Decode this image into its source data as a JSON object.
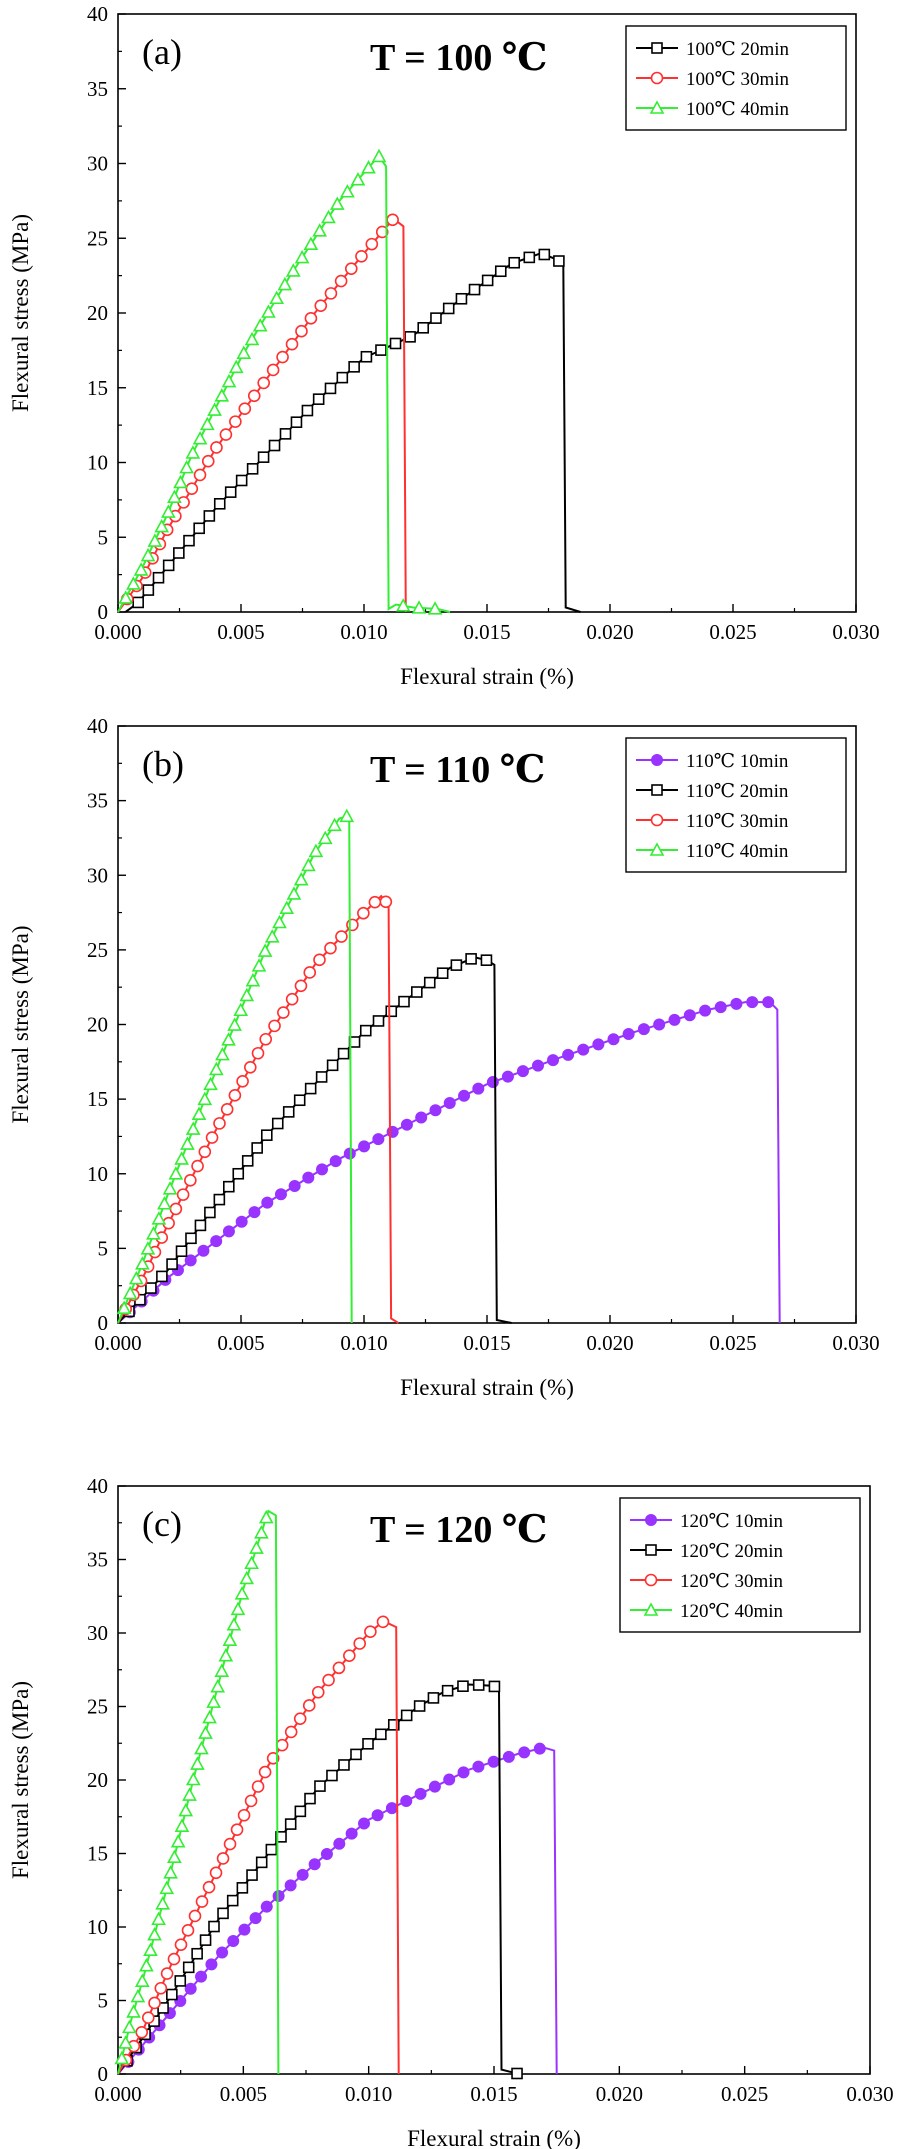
{
  "chart_data": [
    {
      "type": "line",
      "panel_label": "(a)",
      "title": "T = 100 ℃",
      "xlabel": "Flexural strain (%)",
      "ylabel": "Flexural stress (MPa)",
      "xlim": [
        0,
        0.03
      ],
      "ylim": [
        0,
        40
      ],
      "x_ticks": [
        "0.000",
        "0.005",
        "0.010",
        "0.015",
        "0.020",
        "0.025",
        "0.030"
      ],
      "y_ticks": [
        "0",
        "5",
        "10",
        "15",
        "20",
        "25",
        "30",
        "35",
        "40"
      ],
      "legend_position": "top-right",
      "series": [
        {
          "name": "100℃ 20min",
          "color": "#000000",
          "marker": "square",
          "points": [
            [
              0.0003,
              0
            ],
            [
              0.0008,
              0.6
            ],
            [
              0.002,
              3
            ],
            [
              0.004,
              7
            ],
            [
              0.006,
              10.5
            ],
            [
              0.008,
              14
            ],
            [
              0.01,
              17
            ],
            [
              0.012,
              18.5
            ],
            [
              0.014,
              21
            ],
            [
              0.016,
              23.3
            ],
            [
              0.0172,
              24
            ],
            [
              0.0178,
              23.6
            ],
            [
              0.0181,
              23.3
            ],
            [
              0.0182,
              0.3
            ],
            [
              0.0188,
              0
            ]
          ]
        },
        {
          "name": "100℃ 30min",
          "color": "#ff3030",
          "marker": "circle",
          "points": [
            [
              0,
              0
            ],
            [
              0.001,
              2.3
            ],
            [
              0.002,
              5.5
            ],
            [
              0.004,
              11
            ],
            [
              0.006,
              15.5
            ],
            [
              0.008,
              20
            ],
            [
              0.01,
              24
            ],
            [
              0.0112,
              26.3
            ],
            [
              0.0116,
              25.8
            ],
            [
              0.0117,
              0
            ]
          ]
        },
        {
          "name": "100℃ 40min",
          "color": "#33ee33",
          "marker": "triangle",
          "points": [
            [
              0,
              0
            ],
            [
              0.001,
              3
            ],
            [
              0.002,
              6.5
            ],
            [
              0.003,
              10.5
            ],
            [
              0.005,
              17
            ],
            [
              0.007,
              22.5
            ],
            [
              0.009,
              27.5
            ],
            [
              0.0106,
              30.5
            ],
            [
              0.0109,
              29.8
            ],
            [
              0.011,
              0.2
            ],
            [
              0.0113,
              0.5
            ],
            [
              0.012,
              0.3
            ],
            [
              0.013,
              0.2
            ],
            [
              0.0135,
              0
            ]
          ]
        }
      ]
    },
    {
      "type": "line",
      "panel_label": "(b)",
      "title": "T = 110 ℃",
      "xlabel": "Flexural strain (%)",
      "ylabel": "Flexural stress (MPa)",
      "xlim": [
        0,
        0.03
      ],
      "ylim": [
        0,
        40
      ],
      "x_ticks": [
        "0.000",
        "0.005",
        "0.010",
        "0.015",
        "0.020",
        "0.025",
        "0.030"
      ],
      "y_ticks": [
        "0",
        "5",
        "10",
        "15",
        "20",
        "25",
        "30",
        "35",
        "40"
      ],
      "legend_position": "top-right",
      "series": [
        {
          "name": "110℃ 10min",
          "color": "#9933ff",
          "marker": "filled-circle",
          "points": [
            [
              0,
              0
            ],
            [
              0.002,
              3
            ],
            [
              0.004,
              5.5
            ],
            [
              0.006,
              8
            ],
            [
              0.009,
              11
            ],
            [
              0.012,
              13.5
            ],
            [
              0.015,
              16
            ],
            [
              0.018,
              17.8
            ],
            [
              0.021,
              19.5
            ],
            [
              0.024,
              21
            ],
            [
              0.0255,
              21.5
            ],
            [
              0.0265,
              21.5
            ],
            [
              0.0268,
              21
            ],
            [
              0.0269,
              0
            ]
          ]
        },
        {
          "name": "110℃ 20min",
          "color": "#000000",
          "marker": "square",
          "points": [
            [
              0,
              0
            ],
            [
              0.002,
              3.5
            ],
            [
              0.004,
              8
            ],
            [
              0.006,
              12.5
            ],
            [
              0.008,
              16
            ],
            [
              0.01,
              19.5
            ],
            [
              0.012,
              22
            ],
            [
              0.0135,
              23.8
            ],
            [
              0.0145,
              24.5
            ],
            [
              0.015,
              24.3
            ],
            [
              0.0153,
              24
            ],
            [
              0.0154,
              0.2
            ],
            [
              0.016,
              0
            ]
          ]
        },
        {
          "name": "110℃ 30min",
          "color": "#ff3030",
          "marker": "circle",
          "points": [
            [
              0,
              0
            ],
            [
              0.001,
              3
            ],
            [
              0.002,
              6.5
            ],
            [
              0.004,
              13
            ],
            [
              0.006,
              19
            ],
            [
              0.008,
              24
            ],
            [
              0.01,
              27.5
            ],
            [
              0.0107,
              28.6
            ],
            [
              0.011,
              28
            ],
            [
              0.0111,
              0.3
            ],
            [
              0.0114,
              0
            ]
          ]
        },
        {
          "name": "110℃ 40min",
          "color": "#33ee33",
          "marker": "triangle",
          "points": [
            [
              0,
              0
            ],
            [
              0.001,
              4
            ],
            [
              0.002,
              8.5
            ],
            [
              0.004,
              17
            ],
            [
              0.006,
              25
            ],
            [
              0.008,
              31.5
            ],
            [
              0.009,
              33.8
            ],
            [
              0.0094,
              34
            ],
            [
              0.0095,
              0
            ]
          ]
        }
      ]
    },
    {
      "type": "line",
      "panel_label": "(c)",
      "title": "T = 120 ℃",
      "xlabel": "Flexural strain (%)",
      "ylabel": "Flexural stress (MPa)",
      "xlim": [
        0,
        0.03
      ],
      "ylim": [
        0,
        40
      ],
      "x_ticks": [
        "0.000",
        "0.005",
        "0.010",
        "0.015",
        "0.020",
        "0.025",
        "0.030"
      ],
      "y_ticks": [
        "0",
        "5",
        "10",
        "15",
        "20",
        "25",
        "30",
        "35",
        "40"
      ],
      "legend_position": "top-right",
      "series": [
        {
          "name": "120℃ 10min",
          "color": "#9933ff",
          "marker": "filled-circle",
          "points": [
            [
              0,
              0
            ],
            [
              0.002,
              4
            ],
            [
              0.004,
              8
            ],
            [
              0.006,
              11.5
            ],
            [
              0.008,
              14.5
            ],
            [
              0.01,
              17.3
            ],
            [
              0.012,
              19
            ],
            [
              0.014,
              20.7
            ],
            [
              0.016,
              21.8
            ],
            [
              0.017,
              22.2
            ],
            [
              0.0174,
              22
            ],
            [
              0.0175,
              0
            ]
          ]
        },
        {
          "name": "120℃ 20min",
          "color": "#000000",
          "marker": "square",
          "points": [
            [
              0,
              0
            ],
            [
              0.002,
              5
            ],
            [
              0.004,
              10.5
            ],
            [
              0.006,
              15
            ],
            [
              0.008,
              19.5
            ],
            [
              0.01,
              22.5
            ],
            [
              0.012,
              25
            ],
            [
              0.013,
              26
            ],
            [
              0.014,
              26.5
            ],
            [
              0.015,
              26.4
            ],
            [
              0.0152,
              26
            ],
            [
              0.0153,
              0.3
            ],
            [
              0.016,
              0
            ]
          ]
        },
        {
          "name": "120℃ 30min",
          "color": "#ff3030",
          "marker": "circle",
          "points": [
            [
              0,
              0
            ],
            [
              0.001,
              3
            ],
            [
              0.002,
              7
            ],
            [
              0.004,
              14
            ],
            [
              0.006,
              21
            ],
            [
              0.008,
              26
            ],
            [
              0.01,
              30
            ],
            [
              0.0106,
              30.8
            ],
            [
              0.0111,
              30.4
            ],
            [
              0.0112,
              0
            ]
          ]
        },
        {
          "name": "120℃ 40min",
          "color": "#33ee33",
          "marker": "triangle",
          "points": [
            [
              0,
              0
            ],
            [
              0.0005,
              3.5
            ],
            [
              0.001,
              6.5
            ],
            [
              0.002,
              13
            ],
            [
              0.003,
              20
            ],
            [
              0.004,
              26.5
            ],
            [
              0.005,
              33
            ],
            [
              0.006,
              38.3
            ],
            [
              0.0063,
              38
            ],
            [
              0.0064,
              0
            ]
          ]
        }
      ]
    }
  ]
}
